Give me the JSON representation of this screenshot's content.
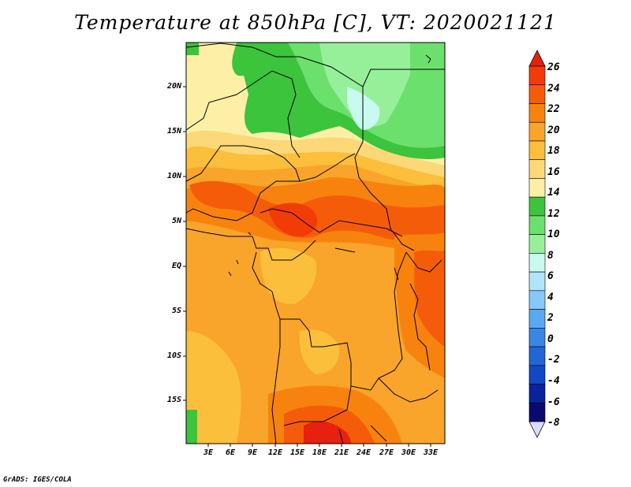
{
  "title": "Temperature at 850hPa [C], VT: 2020021121",
  "credit": "GrADS: IGES/COLA",
  "latitude_labels": [
    "20N",
    "15N",
    "10N",
    "5N",
    "EQ",
    "5S",
    "10S",
    "15S"
  ],
  "longitude_labels": [
    "3E",
    "6E",
    "9E",
    "12E",
    "15E",
    "18E",
    "21E",
    "24E",
    "27E",
    "30E",
    "33E"
  ],
  "colorbar": {
    "levels": [
      "26",
      "24",
      "22",
      "20",
      "18",
      "16",
      "14",
      "12",
      "10",
      "8",
      "6",
      "4",
      "2",
      "0",
      "-2",
      "-4",
      "-6",
      "-8"
    ],
    "colors": [
      "#e8200f",
      "#f23c08",
      "#f55c0a",
      "#f7830e",
      "#f9a42a",
      "#fbbf3c",
      "#fcd878",
      "#fdf0a6",
      "#3cc43c",
      "#6ce06c",
      "#96f09a",
      "#c8faf0",
      "#b0e4fa",
      "#88c8f8",
      "#5aa8f0",
      "#3a86e4",
      "#2266d6",
      "#1148c4",
      "#08239c",
      "#0a0a6e",
      "#dcdcf8"
    ]
  }
}
